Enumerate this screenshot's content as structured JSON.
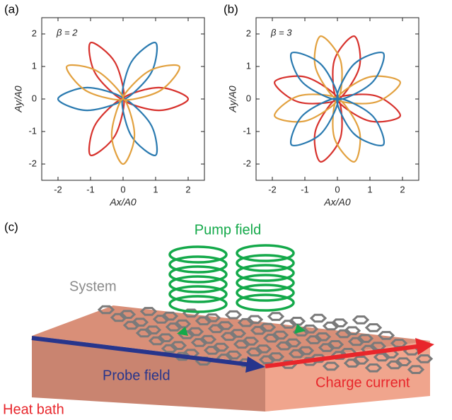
{
  "panels": [
    "(a)",
    "(b)",
    "(c)"
  ],
  "chart_data": [
    {
      "type": "line",
      "annotation": "β = 2",
      "x_label": "Ax/A0",
      "y_label": "Ay/A0",
      "xlim": [
        -2.5,
        2.5
      ],
      "ylim": [
        -2.5,
        2.5
      ],
      "xticks": [
        -2,
        -1,
        0,
        1,
        2
      ],
      "yticks": [
        -2,
        -1,
        0,
        1,
        2
      ],
      "series": [
        {
          "color": "#d7322d",
          "x": [
            0,
            1.1,
            2,
            1.1,
            null,
            0,
            -0.25,
            -1,
            -0.85,
            null,
            0,
            -0.85,
            -1,
            -0.25
          ],
          "values": [
            0,
            -0.35,
            0,
            0.35,
            null,
            0,
            1.13,
            1.73,
            0.78,
            null,
            0,
            -0.78,
            -1.73,
            -1.13
          ]
        },
        {
          "color": "#2a7ab0",
          "x": [
            0,
            0.85,
            1,
            0.25,
            null,
            0,
            -1.1,
            -2,
            -1.1,
            null,
            0,
            0.25,
            1,
            0.85
          ],
          "values": [
            0,
            0.78,
            1.73,
            1.13,
            null,
            0,
            0.35,
            0,
            -0.35,
            null,
            0,
            -1.13,
            -1.73,
            -0.78
          ]
        },
        {
          "color": "#e2a13f",
          "x": [
            0,
            1.13,
            1.73,
            0.78,
            null,
            0,
            -0.78,
            -1.73,
            -1.13,
            null,
            0,
            -0.35,
            0,
            0.35
          ],
          "values": [
            0,
            0.25,
            1,
            0.85,
            null,
            0,
            0.85,
            1,
            0.25,
            null,
            0,
            -1.1,
            -2,
            -1.1
          ]
        }
      ]
    },
    {
      "type": "line",
      "annotation": "β = 3",
      "x_label": "Ax/A0",
      "y_label": "Ay/A0",
      "xlim": [
        -2.5,
        2.5
      ],
      "ylim": [
        -2.5,
        2.5
      ],
      "xticks": [
        -2,
        -1,
        0,
        1,
        2
      ],
      "yticks": [
        -2,
        -1,
        0,
        1,
        2
      ],
      "series": [
        {
          "color": "#d7322d",
          "x": [
            0,
            0.67,
            0.52,
            -0.1,
            null,
            0,
            -0.96,
            -1.93,
            -1.17,
            null,
            0,
            -0.67,
            -0.52,
            0.1,
            null,
            0,
            0.96,
            1.93,
            1.17
          ],
          "values": [
            0,
            0.96,
            1.93,
            1.17,
            null,
            0,
            0.67,
            0.52,
            -0.1,
            null,
            0,
            -0.96,
            -1.93,
            -1.17,
            null,
            0,
            -0.67,
            -0.52,
            0.1
          ]
        },
        {
          "color": "#e2a13f",
          "x": [
            0,
            0.1,
            -0.52,
            -0.67,
            null,
            0,
            -1.17,
            -1.93,
            -0.96,
            null,
            0,
            -0.1,
            0.52,
            0.67,
            null,
            0,
            1.17,
            1.93,
            0.96
          ],
          "values": [
            0,
            1.17,
            1.93,
            0.96,
            null,
            0,
            0.1,
            -0.52,
            -0.67,
            null,
            0,
            -1.17,
            -1.93,
            -0.96,
            null,
            0,
            -0.1,
            0.52,
            0.67
          ]
        },
        {
          "color": "#2a7ab0",
          "x": [
            0,
            -0.5,
            -1.41,
            -1.06,
            null,
            0,
            -1.06,
            -1.41,
            -0.5,
            null,
            0,
            0.5,
            1.41,
            1.06,
            null,
            0,
            1.06,
            1.41,
            0.5
          ],
          "values": [
            0,
            1.06,
            1.41,
            0.5,
            null,
            0,
            -0.5,
            -1.41,
            -1.06,
            null,
            0,
            -1.06,
            -1.41,
            -0.5,
            null,
            0,
            0.5,
            1.41,
            1.06
          ]
        }
      ]
    }
  ],
  "diagram": {
    "pump": "Pump field",
    "system": "System",
    "probe": "Probe field",
    "current": "Charge current",
    "bath": "Heat bath"
  }
}
